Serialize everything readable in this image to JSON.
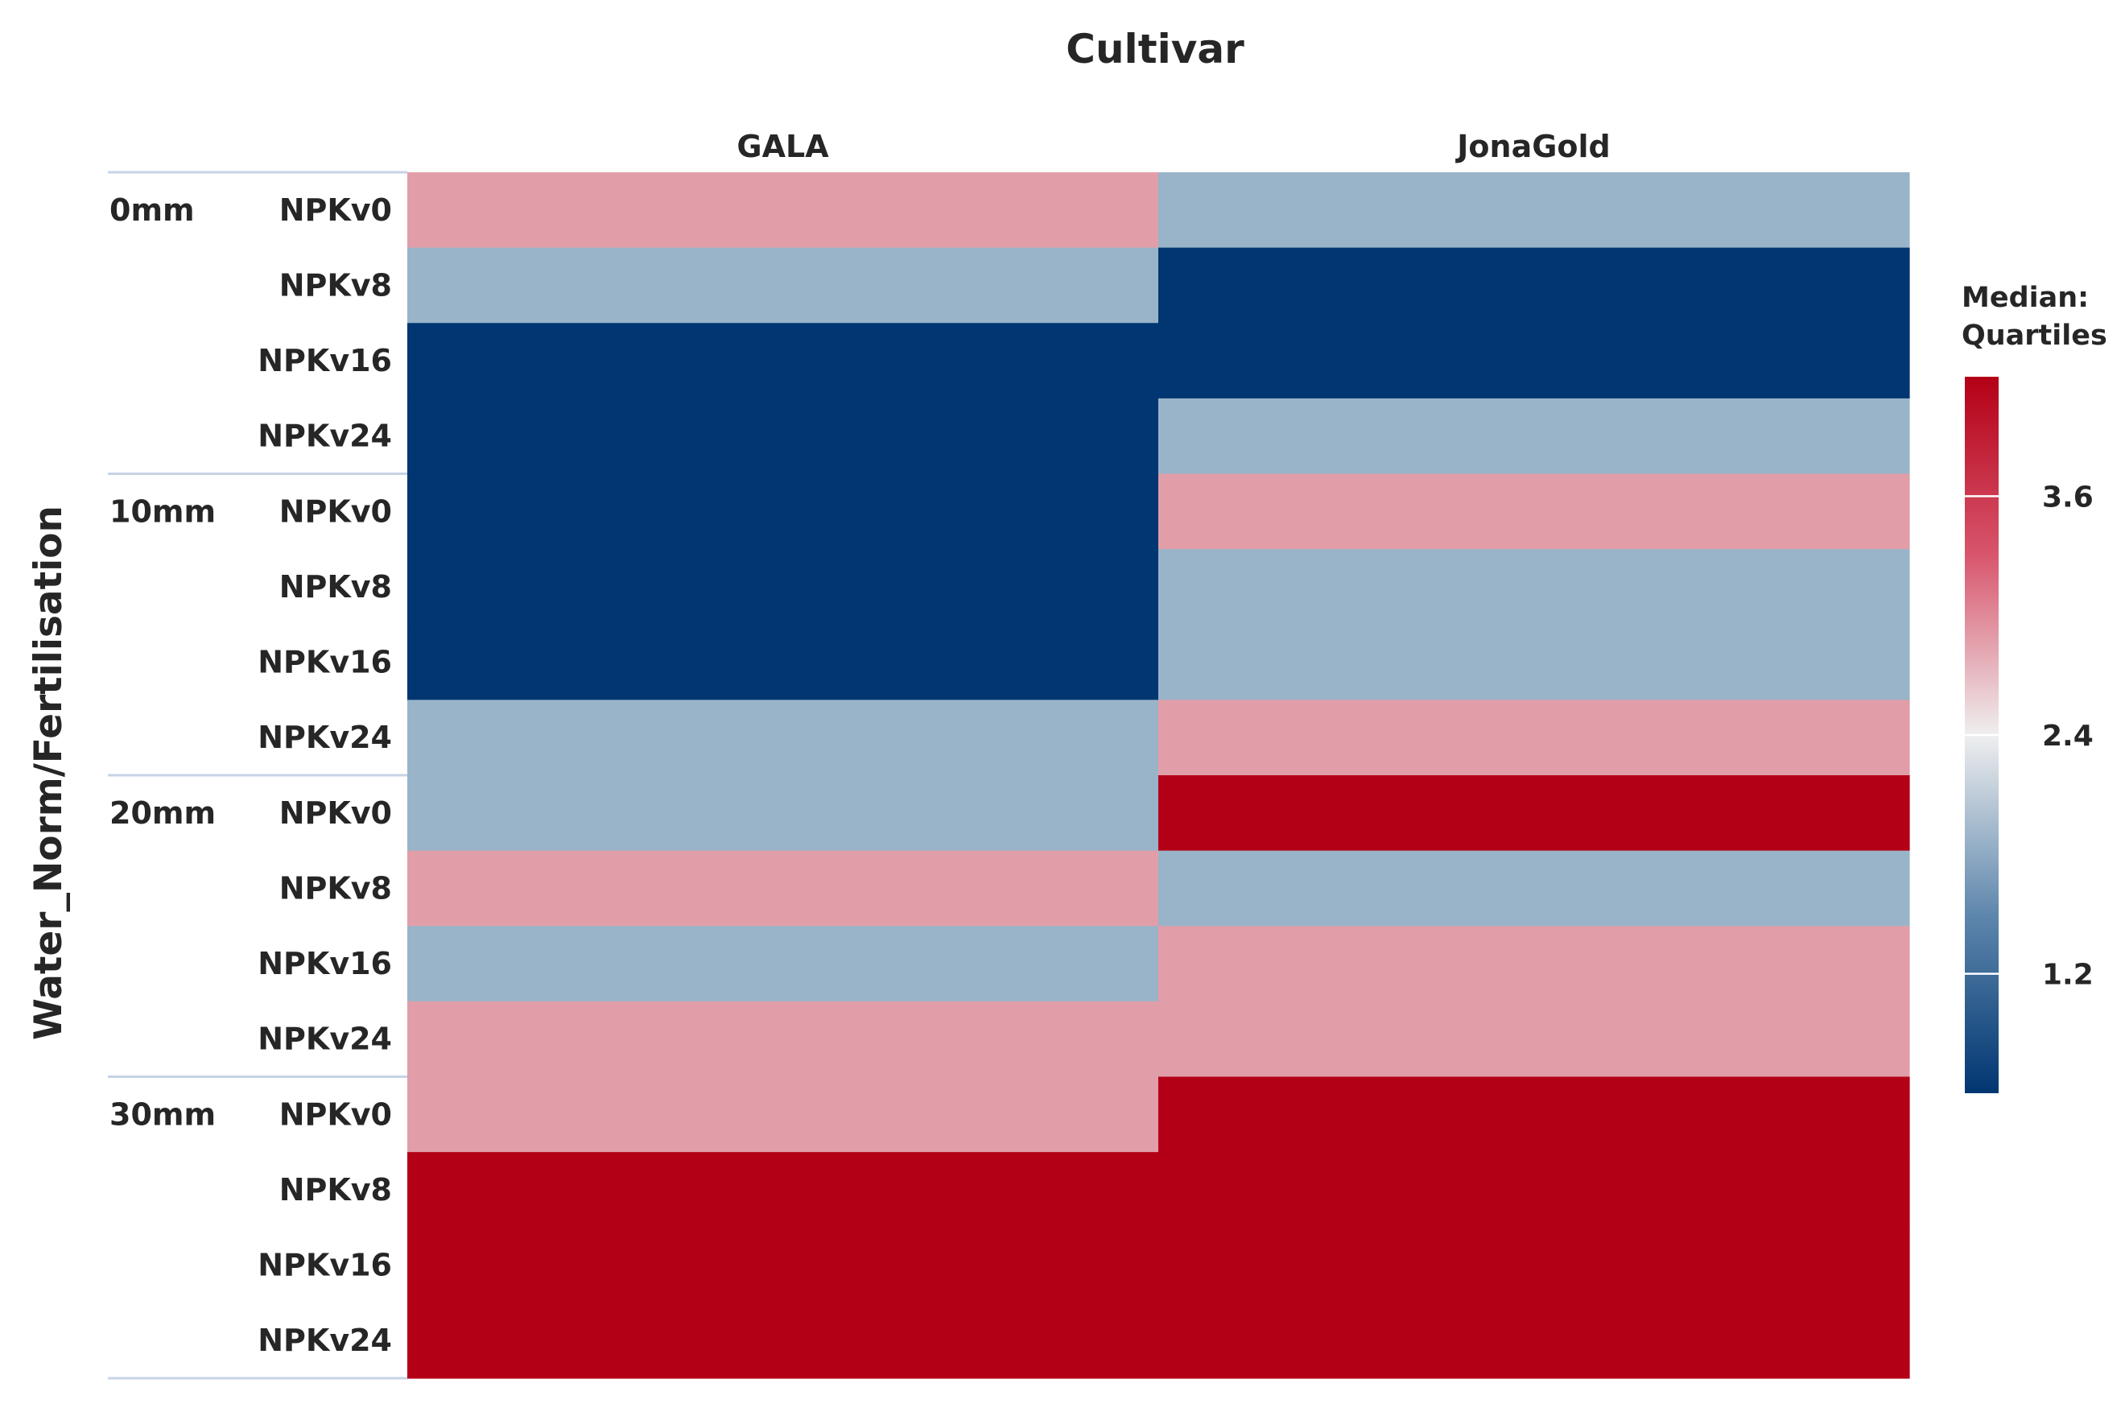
{
  "chart_data": {
    "type": "heatmap",
    "column_title": "Cultivar",
    "row_title": "Water_Norm/Fertilisation",
    "columns": [
      "GALA",
      "JonaGold"
    ],
    "row_groups": [
      {
        "label": "0mm",
        "rows": [
          "NPKv0",
          "NPKv8",
          "NPKv16",
          "NPKv24"
        ]
      },
      {
        "label": "10mm",
        "rows": [
          "NPKv0",
          "NPKv8",
          "NPKv16",
          "NPKv24"
        ]
      },
      {
        "label": "20mm",
        "rows": [
          "NPKv0",
          "NPKv8",
          "NPKv16",
          "NPKv24"
        ]
      },
      {
        "label": "30mm",
        "rows": [
          "NPKv0",
          "NPKv8",
          "NPKv16",
          "NPKv24"
        ]
      }
    ],
    "values": [
      [
        3.0,
        1.8
      ],
      [
        1.8,
        0.6
      ],
      [
        0.6,
        0.6
      ],
      [
        0.6,
        1.8
      ],
      [
        0.6,
        3.0
      ],
      [
        0.6,
        1.8
      ],
      [
        0.6,
        1.8
      ],
      [
        1.8,
        3.0
      ],
      [
        1.8,
        4.2
      ],
      [
        3.0,
        1.8
      ],
      [
        1.8,
        3.0
      ],
      [
        3.0,
        3.0
      ],
      [
        3.0,
        4.2
      ],
      [
        4.2,
        4.2
      ],
      [
        4.2,
        4.2
      ],
      [
        4.2,
        4.2
      ]
    ],
    "legend": {
      "title_lines": [
        "Median:",
        "Quartiles"
      ],
      "ticks": [
        3.6,
        2.4,
        1.2
      ],
      "tick_labels": [
        "3.6",
        "2.4",
        "1.2"
      ],
      "range": [
        0.6,
        4.2
      ],
      "placement": "right"
    },
    "colors": {
      "low": "#003671",
      "mid_low": "#99b4c9",
      "mid_high": "#e19ea8",
      "high": "#b30016"
    }
  }
}
